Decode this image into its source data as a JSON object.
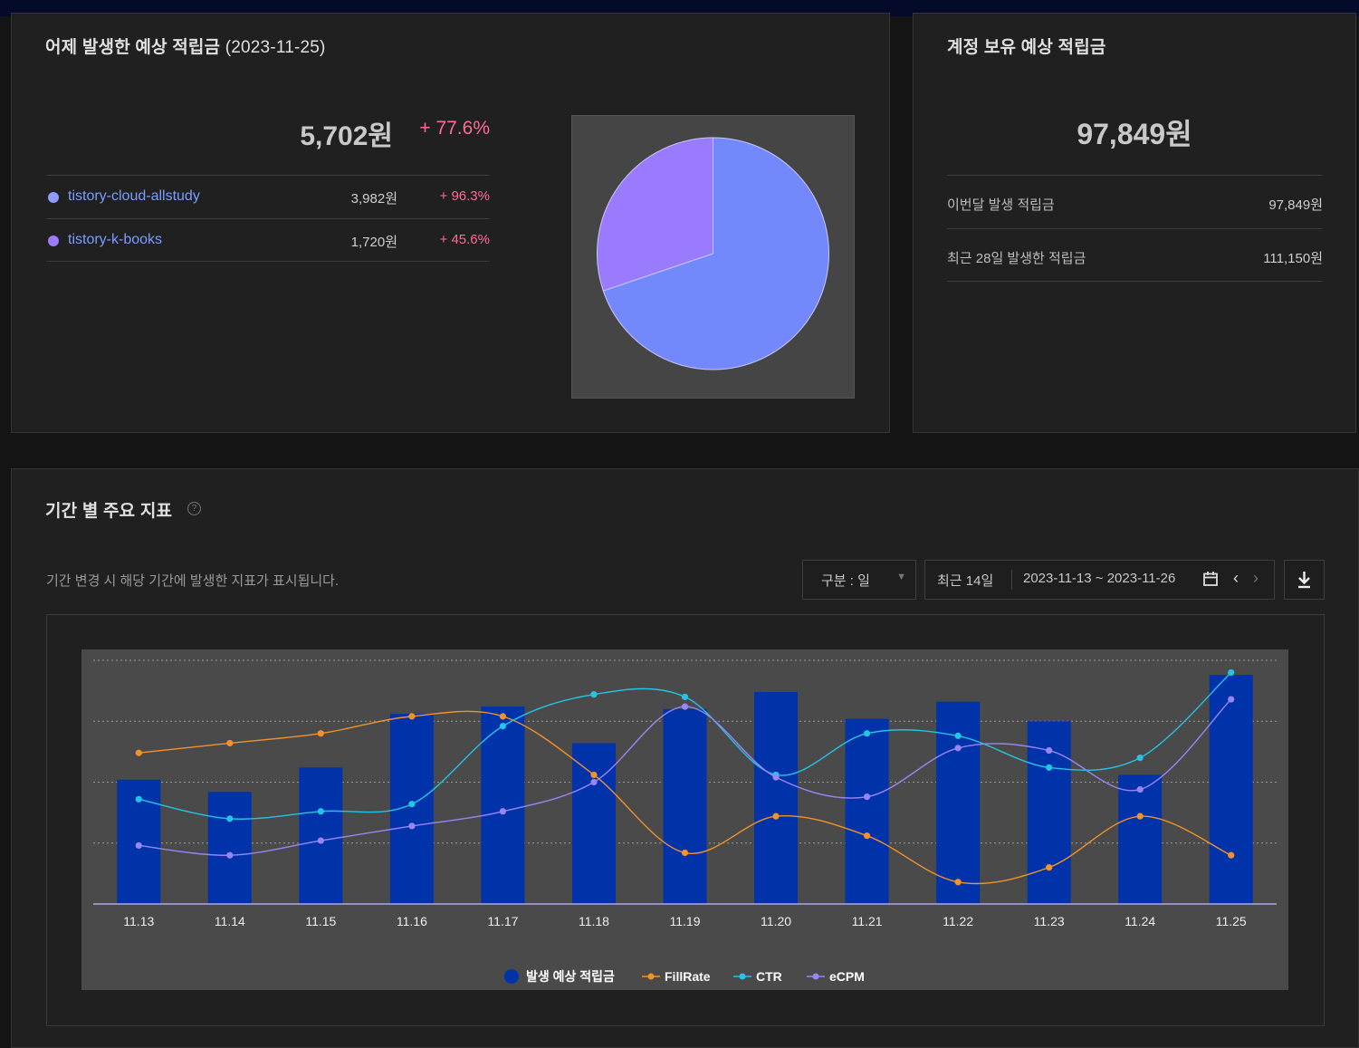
{
  "yesterday": {
    "title": "어제 발생한 예상 적립금",
    "date": "(2023-11-25)",
    "total": "5,702원",
    "change": "+ 77.6%",
    "sites": [
      {
        "name": "tistory-cloud-allstudy",
        "value": "3,982원",
        "change": "+ 96.3%",
        "color": "#7b8cff",
        "share": 0.698
      },
      {
        "name": "tistory-k-books",
        "value": "1,720원",
        "change": "+ 45.6%",
        "color": "#9b7bff",
        "share": 0.302
      }
    ]
  },
  "balance": {
    "title": "계정 보유 예상 적립금",
    "total": "97,849원",
    "rows": [
      {
        "label": "이번달 발생 적립금",
        "value": "97,849원"
      },
      {
        "label": "최근 28일 발생한 적립금",
        "value": "111,150원"
      }
    ]
  },
  "metrics": {
    "title": "기간 별 주요 지표",
    "help": "?",
    "description": "기간 변경 시 해당 기간에 발생한 지표가 표시됩니다.",
    "unit_select": "구분 : 일",
    "range_preset": "최근 14일",
    "range_dates": "2023-11-13 ~ 2023-11-26",
    "prev": "‹",
    "next": "›"
  },
  "colors": {
    "bar": "#0033aa",
    "fillrate": "#f2922b",
    "ctr": "#25c3e6",
    "ecpm": "#9a85f5",
    "pie_main": "#7388fb",
    "pie_secondary": "#9a7bfd"
  },
  "chart_data": {
    "type": "bar",
    "categories": [
      "11.13",
      "11.14",
      "11.15",
      "11.16",
      "11.17",
      "11.18",
      "11.19",
      "11.20",
      "11.21",
      "11.22",
      "11.23",
      "11.24",
      "11.25"
    ],
    "y_scale": [
      0,
      100
    ],
    "grid": "dotted horizontal",
    "legend_position": "bottom-center",
    "series": [
      {
        "name": "발생 예상 적립금",
        "kind": "bar",
        "values": [
          51,
          46,
          56,
          78,
          81,
          66,
          80,
          87,
          76,
          83,
          75,
          53,
          94
        ]
      },
      {
        "name": "FillRate",
        "kind": "line",
        "values": [
          62,
          66,
          70,
          77,
          77,
          53,
          21,
          36,
          28,
          9,
          15,
          36,
          20
        ]
      },
      {
        "name": "CTR",
        "kind": "line",
        "values": [
          43,
          35,
          38,
          41,
          73,
          86,
          85,
          53,
          70,
          69,
          56,
          60,
          95
        ]
      },
      {
        "name": "eCPM",
        "kind": "line",
        "values": [
          24,
          20,
          26,
          32,
          38,
          50,
          81,
          52,
          44,
          64,
          63,
          47,
          84
        ]
      }
    ]
  }
}
